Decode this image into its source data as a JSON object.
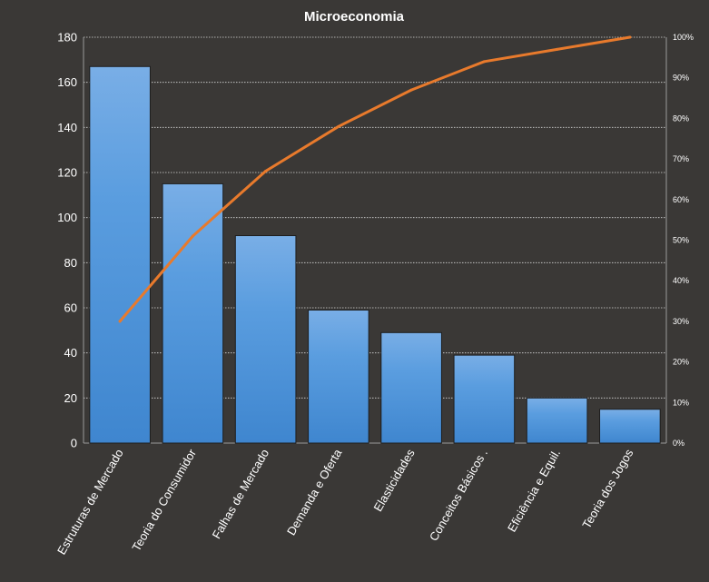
{
  "chart_data": {
    "type": "bar",
    "title": "Microeconomia",
    "categories": [
      "Estruturas de Mercado",
      "Teoria do Consumidor",
      "Falhas de Mercado",
      "Demanda e Oferta",
      "Elasticidades",
      "Conceitos Básicos  .",
      "Eficiência e Equil.",
      "Teoria dos Jogos"
    ],
    "series": [
      {
        "type": "bar",
        "values": [
          167,
          115,
          92,
          59,
          49,
          39,
          20,
          15
        ],
        "color": "#4f93d9"
      },
      {
        "type": "line",
        "axis": "secondary",
        "values": [
          0.3,
          0.51,
          0.67,
          0.78,
          0.87,
          0.94,
          0.97,
          1.0
        ],
        "color": "#e87a2c"
      }
    ],
    "ylim": [
      0,
      180
    ],
    "yticks": [
      "0",
      "20",
      "40",
      "60",
      "80",
      "100",
      "120",
      "140",
      "160",
      "180"
    ],
    "y2lim": [
      0,
      1
    ],
    "y2ticks": [
      "0%",
      "10%",
      "20%",
      "30%",
      "40%",
      "50%",
      "60%",
      "70%",
      "80%",
      "90%",
      "100%"
    ],
    "grid": true,
    "legend": "none",
    "colors": {
      "background": "#3a3836",
      "grid": "#d8d8d8",
      "text": "#ffffff"
    }
  }
}
